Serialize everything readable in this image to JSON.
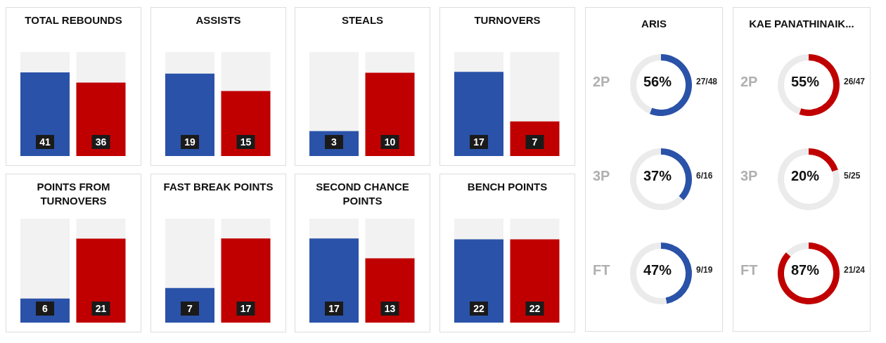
{
  "chart_data": [
    {
      "type": "bar",
      "title": "TOTAL REBOUNDS",
      "categories": [
        null,
        null
      ],
      "values": [
        41,
        36
      ],
      "colors": [
        "#2a52a8",
        "#c00000"
      ],
      "ylim": [
        0,
        51
      ],
      "data_labels": true
    },
    {
      "type": "bar",
      "title": "ASSISTS",
      "categories": [
        null,
        null
      ],
      "values": [
        19,
        15
      ],
      "colors": [
        "#2a52a8",
        "#c00000"
      ],
      "ylim": [
        0,
        24
      ],
      "data_labels": true
    },
    {
      "type": "bar",
      "title": "STEALS",
      "categories": [
        null,
        null
      ],
      "values": [
        3,
        10
      ],
      "colors": [
        "#2a52a8",
        "#c00000"
      ],
      "ylim": [
        0,
        12.5
      ],
      "data_labels": true
    },
    {
      "type": "bar",
      "title": "TURNOVERS",
      "categories": [
        null,
        null
      ],
      "values": [
        17,
        7
      ],
      "colors": [
        "#2a52a8",
        "#c00000"
      ],
      "ylim": [
        0,
        21
      ],
      "data_labels": true
    },
    {
      "type": "bar",
      "title": "POINTS FROM TURNOVERS",
      "categories": [
        null,
        null
      ],
      "values": [
        6,
        21
      ],
      "colors": [
        "#2a52a8",
        "#c00000"
      ],
      "ylim": [
        0,
        26
      ],
      "data_labels": true
    },
    {
      "type": "bar",
      "title": "FAST BREAK POINTS",
      "categories": [
        null,
        null
      ],
      "values": [
        7,
        17
      ],
      "colors": [
        "#2a52a8",
        "#c00000"
      ],
      "ylim": [
        0,
        21
      ],
      "data_labels": true
    },
    {
      "type": "bar",
      "title": "SECOND CHANCE POINTS",
      "categories": [
        null,
        null
      ],
      "values": [
        17,
        13
      ],
      "colors": [
        "#2a52a8",
        "#c00000"
      ],
      "ylim": [
        0,
        21
      ],
      "data_labels": true
    },
    {
      "type": "bar",
      "title": "BENCH POINTS",
      "categories": [
        null,
        null
      ],
      "values": [
        22,
        22
      ],
      "colors": [
        "#2a52a8",
        "#c00000"
      ],
      "ylim": [
        0,
        27.5
      ],
      "data_labels": true
    },
    {
      "type": "other",
      "title": "ARIS"
    },
    {
      "type": "donut",
      "title": "2P",
      "categories": [
        null,
        null
      ],
      "values": [
        56,
        44
      ],
      "colors": [
        "#2a52a8",
        "#ebebeb"
      ],
      "annotations": [
        "56%",
        "27/48"
      ]
    },
    {
      "type": "donut",
      "title": "3P",
      "categories": [
        null,
        null
      ],
      "values": [
        37,
        63
      ],
      "colors": [
        "#2a52a8",
        "#ebebeb"
      ],
      "annotations": [
        "37%",
        "6/16"
      ]
    },
    {
      "type": "donut",
      "title": "FT",
      "categories": [
        null,
        null
      ],
      "values": [
        47,
        53
      ],
      "colors": [
        "#2a52a8",
        "#ebebeb"
      ],
      "annotations": [
        "47%",
        "9/19"
      ]
    },
    {
      "type": "other",
      "title": "KAE PANATHINAIK..."
    },
    {
      "type": "donut",
      "title": "2P",
      "categories": [
        null,
        null
      ],
      "values": [
        55,
        45
      ],
      "colors": [
        "#c00000",
        "#ebebeb"
      ],
      "annotations": [
        "55%",
        "26/47"
      ]
    },
    {
      "type": "donut",
      "title": "3P",
      "categories": [
        null,
        null
      ],
      "values": [
        20,
        80
      ],
      "colors": [
        "#c00000",
        "#ebebeb"
      ],
      "annotations": [
        "20%",
        "5/25"
      ]
    },
    {
      "type": "donut",
      "title": "FT",
      "categories": [
        null,
        null
      ],
      "values": [
        87,
        13
      ],
      "colors": [
        "#c00000",
        "#ebebeb"
      ],
      "annotations": [
        "87%",
        "21/24"
      ]
    }
  ]
}
